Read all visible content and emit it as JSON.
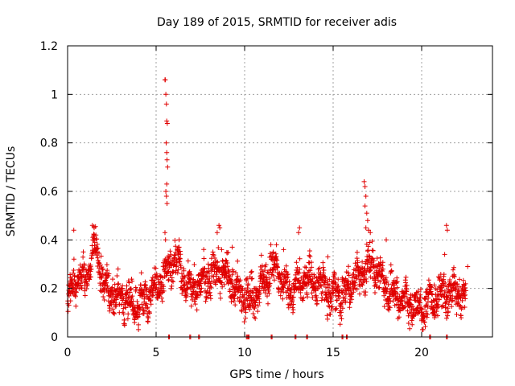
{
  "chart_data": {
    "type": "scatter",
    "title": "Day 189 of 2015, SRMTID for receiver adis",
    "xlabel": "GPS time / hours",
    "ylabel": "SRMTID / TECUs",
    "xlim": [
      0,
      24
    ],
    "ylim": [
      0,
      1.2
    ],
    "xticks": [
      0,
      5,
      10,
      15,
      20
    ],
    "xtick_labels": [
      "0",
      "5",
      "10",
      "15",
      "20"
    ],
    "yticks": [
      0,
      0.2,
      0.4,
      0.6,
      0.8,
      1.0,
      1.2
    ],
    "ytick_labels": [
      "0",
      "0.2",
      "0.4",
      "0.6",
      "0.8",
      "1",
      "1.2"
    ],
    "grid": true,
    "marker": "+",
    "color": "#e00000",
    "series": [
      {
        "name": "SRMTID",
        "profile": [
          [
            0.0,
            0.13
          ],
          [
            0.3,
            0.22
          ],
          [
            0.6,
            0.25
          ],
          [
            0.9,
            0.22
          ],
          [
            1.2,
            0.28
          ],
          [
            1.5,
            0.38
          ],
          [
            1.8,
            0.3
          ],
          [
            2.1,
            0.2
          ],
          [
            2.5,
            0.18
          ],
          [
            3.0,
            0.16
          ],
          [
            3.5,
            0.15
          ],
          [
            4.0,
            0.13
          ],
          [
            4.5,
            0.15
          ],
          [
            4.8,
            0.18
          ],
          [
            5.2,
            0.22
          ],
          [
            5.5,
            0.25
          ],
          [
            5.8,
            0.3
          ],
          [
            6.2,
            0.32
          ],
          [
            6.5,
            0.25
          ],
          [
            7.0,
            0.2
          ],
          [
            7.5,
            0.22
          ],
          [
            8.0,
            0.25
          ],
          [
            8.5,
            0.28
          ],
          [
            9.0,
            0.25
          ],
          [
            9.5,
            0.2
          ],
          [
            10.0,
            0.17
          ],
          [
            10.5,
            0.15
          ],
          [
            11.0,
            0.22
          ],
          [
            11.5,
            0.28
          ],
          [
            12.0,
            0.25
          ],
          [
            12.5,
            0.18
          ],
          [
            13.0,
            0.22
          ],
          [
            13.5,
            0.25
          ],
          [
            14.0,
            0.22
          ],
          [
            14.5,
            0.2
          ],
          [
            15.0,
            0.17
          ],
          [
            15.5,
            0.16
          ],
          [
            16.0,
            0.22
          ],
          [
            16.5,
            0.25
          ],
          [
            17.0,
            0.3
          ],
          [
            17.5,
            0.27
          ],
          [
            18.0,
            0.2
          ],
          [
            18.5,
            0.18
          ],
          [
            19.0,
            0.15
          ],
          [
            19.5,
            0.13
          ],
          [
            20.0,
            0.12
          ],
          [
            20.5,
            0.15
          ],
          [
            21.0,
            0.17
          ],
          [
            21.5,
            0.2
          ],
          [
            22.0,
            0.18
          ],
          [
            22.5,
            0.17
          ]
        ],
        "spikes": [
          [
            5.5,
            1.06
          ],
          [
            5.52,
            1.06
          ],
          [
            5.55,
            1.0
          ],
          [
            5.58,
            0.96
          ],
          [
            5.6,
            0.89
          ],
          [
            5.63,
            0.88
          ],
          [
            5.57,
            0.8
          ],
          [
            5.6,
            0.76
          ],
          [
            5.62,
            0.73
          ],
          [
            5.65,
            0.7
          ],
          [
            5.6,
            0.63
          ],
          [
            5.55,
            0.6
          ],
          [
            5.58,
            0.58
          ],
          [
            5.62,
            0.55
          ],
          [
            5.5,
            0.43
          ],
          [
            5.53,
            0.4
          ],
          [
            8.55,
            0.46
          ],
          [
            8.6,
            0.45
          ],
          [
            8.45,
            0.43
          ],
          [
            1.4,
            0.46
          ],
          [
            1.5,
            0.45
          ],
          [
            1.6,
            0.42
          ],
          [
            0.35,
            0.44
          ],
          [
            13.1,
            0.45
          ],
          [
            13.05,
            0.43
          ],
          [
            16.75,
            0.64
          ],
          [
            16.8,
            0.62
          ],
          [
            16.85,
            0.58
          ],
          [
            16.8,
            0.54
          ],
          [
            16.9,
            0.51
          ],
          [
            16.95,
            0.48
          ],
          [
            16.85,
            0.45
          ],
          [
            17.0,
            0.44
          ],
          [
            17.1,
            0.43
          ],
          [
            18.0,
            0.4
          ],
          [
            21.4,
            0.46
          ],
          [
            21.45,
            0.44
          ],
          [
            21.3,
            0.34
          ],
          [
            11.8,
            0.38
          ],
          [
            12.2,
            0.36
          ],
          [
            6.3,
            0.37
          ],
          [
            9.3,
            0.37
          ],
          [
            8.7,
            0.36
          ],
          [
            14.7,
            0.33
          ],
          [
            22.6,
            0.29
          ]
        ],
        "zero_points": [
          5.7,
          6.9,
          7.4,
          10.1,
          10.2,
          11.5,
          12.85,
          13.5,
          15.5,
          15.75,
          20.45,
          21.4
        ],
        "samples_per_hour": 95,
        "spread": 0.05
      }
    ]
  }
}
